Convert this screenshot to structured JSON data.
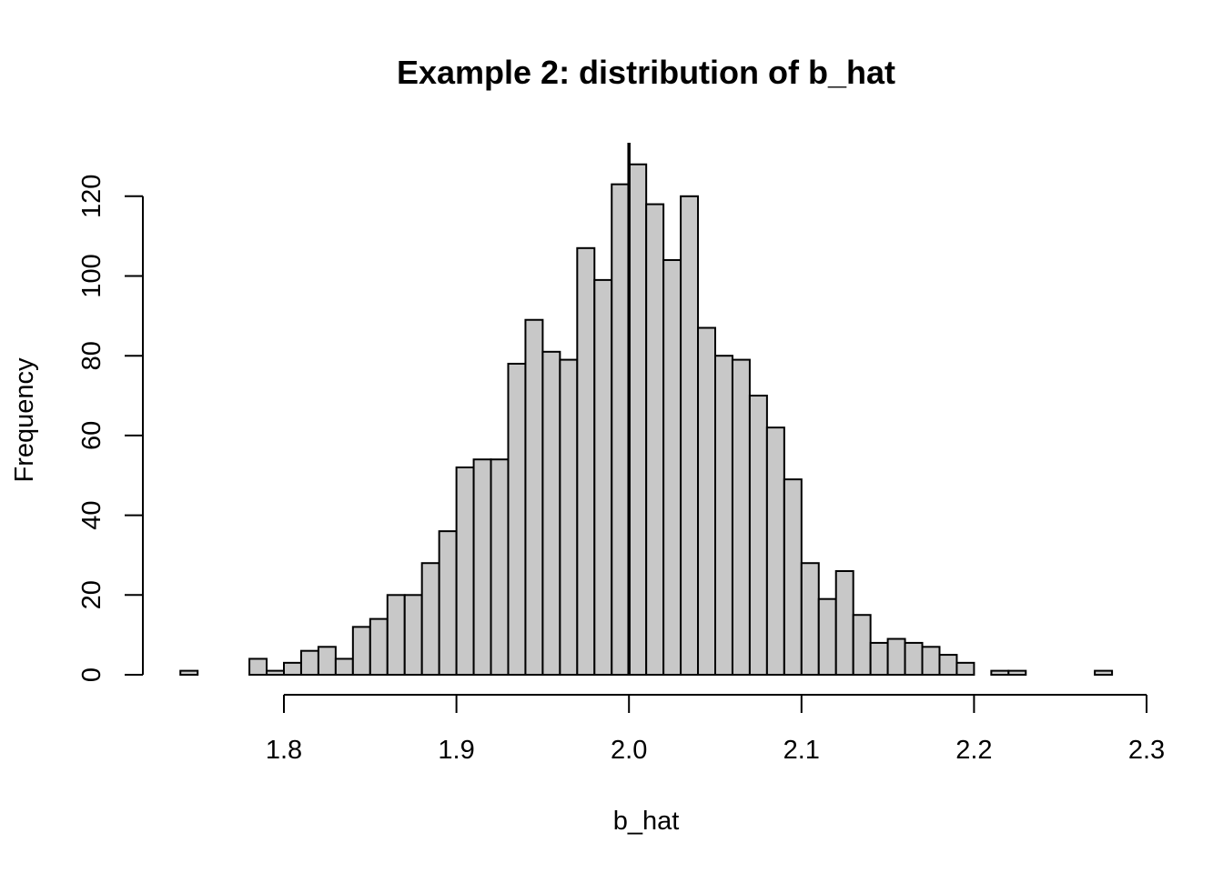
{
  "chart_data": {
    "type": "bar",
    "title": "Example 2: distribution of b_hat",
    "xlabel": "b_hat",
    "ylabel": "Frequency",
    "bin_width": 0.01,
    "bin_start": 1.74,
    "counts": [
      1,
      0,
      0,
      0,
      4,
      1,
      3,
      6,
      7,
      4,
      12,
      14,
      20,
      20,
      28,
      36,
      52,
      54,
      54,
      78,
      89,
      81,
      79,
      107,
      99,
      123,
      128,
      118,
      104,
      120,
      87,
      80,
      79,
      70,
      62,
      49,
      28,
      19,
      26,
      15,
      8,
      9,
      8,
      7,
      5,
      3,
      0,
      1,
      1,
      0,
      0,
      0,
      0,
      1
    ],
    "xlim": [
      1.74,
      2.3
    ],
    "ylim": [
      0,
      128
    ],
    "x_ticks": [
      1.8,
      1.9,
      2.0,
      2.1,
      2.2,
      2.3
    ],
    "x_tick_labels": [
      "1.8",
      "1.9",
      "2.0",
      "2.1",
      "2.2",
      "2.3"
    ],
    "y_ticks": [
      0,
      20,
      40,
      60,
      80,
      100,
      120
    ],
    "y_tick_labels": [
      "0",
      "20",
      "40",
      "60",
      "80",
      "100",
      "120"
    ],
    "reference_line_x": 2.0,
    "grid": false,
    "bar_fill": "#c8c8c8",
    "bar_stroke": "#000000"
  }
}
